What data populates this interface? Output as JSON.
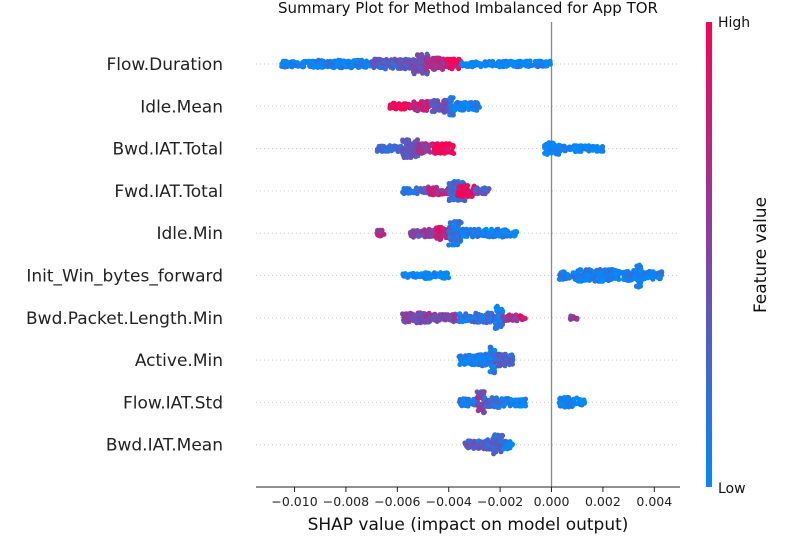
{
  "chart_data": {
    "type": "scatter",
    "title": "Summary Plot for Method Imbalanced for App TOR",
    "xlabel": "SHAP value (impact on model output)",
    "xlim": [
      -0.0115,
      0.005
    ],
    "x_ticks": [
      "−0.010",
      "−0.008",
      "−0.006",
      "−0.004",
      "−0.002",
      "0.000",
      "0.002",
      "0.004"
    ],
    "x_tick_values": [
      -0.01,
      -0.008,
      -0.006,
      -0.004,
      -0.002,
      0.0,
      0.002,
      0.004
    ],
    "zero_line": 0.0,
    "features": [
      "Flow.Duration",
      "Idle.Mean",
      "Bwd.IAT.Total",
      "Fwd.IAT.Total",
      "Idle.Min",
      "Init_Win_bytes_forward",
      "Bwd.Packet.Length.Min",
      "Active.Min",
      "Flow.IAT.Std",
      "Bwd.IAT.Mean"
    ],
    "colorbar": {
      "label": "Feature value",
      "high": "High",
      "low": "Low",
      "colors": [
        "#008afb",
        "#ff0052"
      ]
    },
    "beeswarm": [
      {
        "feature": "Flow.Duration",
        "points": [
          [
            -0.0105,
            0.0,
            3,
            0.0
          ],
          [
            -0.0093,
            -0.0072,
            4,
            0.05
          ],
          [
            -0.007,
            -0.0052,
            5,
            0.3
          ],
          [
            -0.0054,
            -0.0048,
            10,
            0.45
          ],
          [
            -0.0049,
            -0.0042,
            6,
            0.7
          ],
          [
            -0.0041,
            -0.0036,
            5,
            0.95
          ]
        ]
      },
      {
        "feature": "Idle.Mean",
        "points": [
          [
            -0.0063,
            -0.0054,
            3,
            0.9
          ],
          [
            -0.0054,
            -0.0047,
            5,
            0.75
          ],
          [
            -0.0047,
            -0.004,
            6,
            0.4
          ],
          [
            -0.004,
            -0.0038,
            9,
            0.15
          ],
          [
            -0.0038,
            -0.0028,
            4,
            0.05
          ]
        ]
      },
      {
        "feature": "Bwd.IAT.Total",
        "points": [
          [
            -0.0068,
            -0.0058,
            3,
            0.2
          ],
          [
            -0.0058,
            -0.0052,
            9,
            0.35
          ],
          [
            -0.0052,
            -0.0046,
            5,
            0.65
          ],
          [
            -0.0046,
            -0.0038,
            5,
            0.95
          ],
          [
            -0.0003,
            0.0003,
            6,
            0.0
          ],
          [
            0.0003,
            0.002,
            3,
            0.0
          ]
        ]
      },
      {
        "feature": "Fwd.IAT.Total",
        "points": [
          [
            -0.0058,
            -0.0048,
            3,
            0.2
          ],
          [
            -0.0048,
            -0.004,
            4,
            0.7
          ],
          [
            -0.004,
            -0.0033,
            10,
            0.2
          ],
          [
            -0.0037,
            -0.003,
            6,
            0.9
          ],
          [
            -0.003,
            -0.0024,
            3,
            0.3
          ]
        ]
      },
      {
        "feature": "Idle.Min",
        "points": [
          [
            -0.0068,
            -0.0065,
            3,
            0.65
          ],
          [
            -0.0055,
            -0.0045,
            4,
            0.5
          ],
          [
            -0.0045,
            -0.004,
            7,
            0.75
          ],
          [
            -0.004,
            -0.0035,
            12,
            0.15
          ],
          [
            -0.0035,
            -0.0013,
            4,
            0.05
          ]
        ]
      },
      {
        "feature": "Init_Win_bytes_forward",
        "points": [
          [
            -0.0058,
            -0.005,
            2,
            0.0
          ],
          [
            -0.005,
            -0.004,
            3,
            0.0
          ],
          [
            0.0003,
            0.001,
            4,
            0.1
          ],
          [
            0.001,
            0.0025,
            6,
            0.05
          ],
          [
            0.0025,
            0.0033,
            5,
            0.05
          ],
          [
            0.0033,
            0.0035,
            12,
            0.0
          ],
          [
            0.0035,
            0.0043,
            4,
            0.05
          ]
        ]
      },
      {
        "feature": "Bwd.Packet.Length.Min",
        "points": [
          [
            -0.0058,
            -0.0046,
            5,
            0.5
          ],
          [
            -0.0046,
            -0.0036,
            4,
            0.5
          ],
          [
            -0.0036,
            -0.003,
            4,
            0.1
          ],
          [
            -0.003,
            -0.0022,
            5,
            0.2
          ],
          [
            -0.0022,
            -0.0019,
            12,
            0.1
          ],
          [
            -0.0019,
            -0.0013,
            3,
            0.6
          ],
          [
            -0.0013,
            -0.001,
            2,
            0.9
          ],
          [
            0.0007,
            0.001,
            2,
            0.5
          ]
        ]
      },
      {
        "feature": "Active.Min",
        "points": [
          [
            -0.0036,
            -0.003,
            5,
            0.0
          ],
          [
            -0.003,
            -0.0024,
            6,
            0.05
          ],
          [
            -0.0024,
            -0.0022,
            13,
            0.1
          ],
          [
            -0.0022,
            -0.0015,
            6,
            0.3
          ]
        ]
      },
      {
        "feature": "Flow.IAT.Std",
        "points": [
          [
            -0.0036,
            -0.0029,
            4,
            0.1
          ],
          [
            -0.0029,
            -0.0026,
            11,
            0.5
          ],
          [
            -0.0026,
            -0.002,
            5,
            0.2
          ],
          [
            -0.002,
            -0.001,
            4,
            0.05
          ],
          [
            0.0003,
            0.001,
            5,
            0.05
          ],
          [
            0.001,
            0.0013,
            3,
            0.0
          ]
        ]
      },
      {
        "feature": "Bwd.IAT.Mean",
        "points": [
          [
            -0.0034,
            -0.0027,
            4,
            0.3
          ],
          [
            -0.0027,
            -0.0023,
            5,
            0.25
          ],
          [
            -0.0023,
            -0.0019,
            10,
            0.3
          ],
          [
            -0.0019,
            -0.0016,
            5,
            0.05
          ],
          [
            -0.0016,
            -0.0015,
            2,
            0.0
          ]
        ]
      }
    ]
  }
}
